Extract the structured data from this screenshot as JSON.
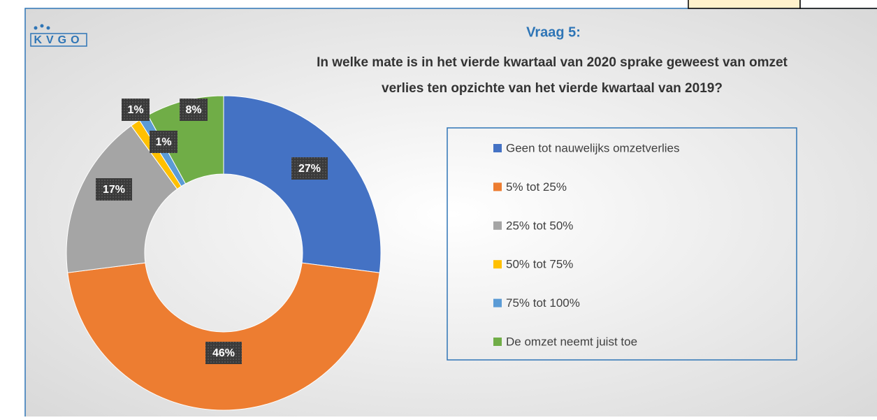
{
  "logo": "KVGO",
  "chart_data": {
    "type": "donut",
    "title": "Vraag 5:",
    "subtitle_lines": [
      "In welke mate is in het vierde kwartaal van 2020 sprake geweest van omzet",
      "verlies ten opzichte van het vierde kwartaal van 2019?"
    ],
    "categories": [
      "Geen tot nauwelijks omzetverlies",
      "5% tot 25%",
      "25% tot 50%",
      "50% tot 75%",
      "75% tot 100%",
      "De omzet neemt juist toe"
    ],
    "values": [
      27,
      46,
      17,
      1,
      1,
      8
    ],
    "value_labels": [
      "27%",
      "46%",
      "17%",
      "1%",
      "1%",
      "8%"
    ],
    "colors": [
      "#4472c4",
      "#ed7d31",
      "#a5a5a5",
      "#ffc000",
      "#5b9bd5",
      "#70ad47"
    ],
    "legend": "right"
  }
}
